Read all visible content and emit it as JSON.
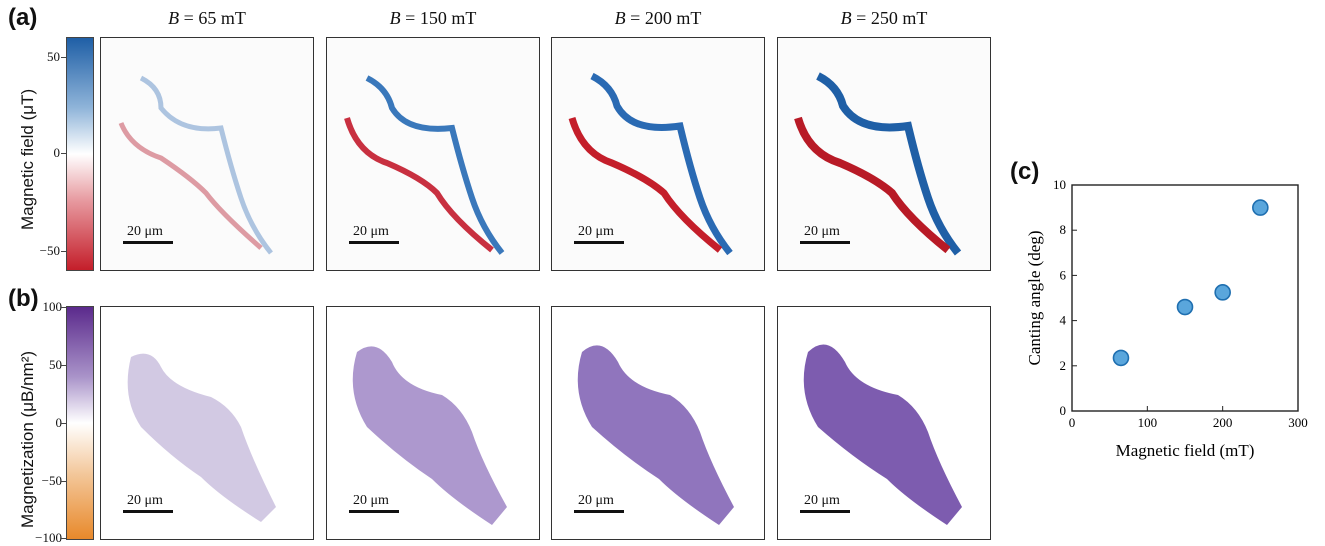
{
  "panels": {
    "a": "(a)",
    "b": "(b)",
    "c": "(c)"
  },
  "column_titles": [
    {
      "sym": "B",
      "rest": " = 65 mT"
    },
    {
      "sym": "B",
      "rest": " = 150 mT"
    },
    {
      "sym": "B",
      "rest": " = 200 mT"
    },
    {
      "sym": "B",
      "rest": " = 250 mT"
    }
  ],
  "scalebar_label": "20 μm",
  "colorbar_a": {
    "label": "Magnetic field (μT)",
    "ticks": [
      "50",
      "0",
      "−50"
    ],
    "colors": {
      "top": "#1f5fa6",
      "mid": "#ffffff",
      "bottom": "#c41e2a"
    }
  },
  "colorbar_b": {
    "label": "Magnetization (μB/nm²)",
    "ticks": [
      "100",
      "50",
      "0",
      "−50",
      "−100"
    ],
    "colors": {
      "top": "#5b2a8c",
      "mid": "#ffffff",
      "bottom": "#e8892b"
    }
  },
  "chart_data": {
    "type": "scatter",
    "xlabel": "Magnetic field (mT)",
    "ylabel": "Canting angle (deg)",
    "xlim": [
      0,
      300
    ],
    "ylim": [
      0,
      10
    ],
    "xticks": [
      "0",
      "100",
      "200",
      "300"
    ],
    "yticks": [
      "0",
      "2",
      "4",
      "6",
      "8",
      "10"
    ],
    "x": [
      65,
      150,
      200,
      250
    ],
    "y": [
      2.35,
      4.6,
      5.25,
      9.0
    ],
    "marker_color": "#5aa6dc",
    "marker_edge": "#1f6fb0"
  }
}
